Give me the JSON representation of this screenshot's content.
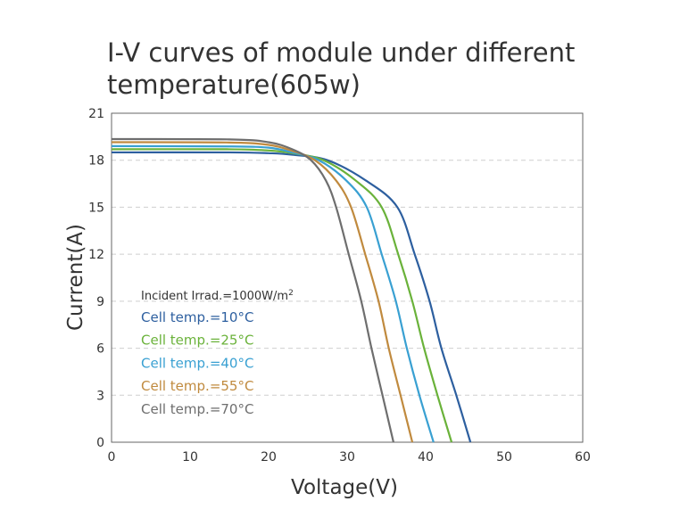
{
  "chart_data": {
    "type": "line",
    "title_lines": [
      "I-V curves of module under different",
      "temperature(605w)"
    ],
    "xlabel": "Voltage(V)",
    "ylabel": "Current(A)",
    "xlim": [
      0,
      60
    ],
    "ylim": [
      0,
      21
    ],
    "xticks": [
      "0",
      "10",
      "20",
      "30",
      "40",
      "50",
      "60"
    ],
    "yticks": [
      "0",
      "3",
      "6",
      "9",
      "12",
      "15",
      "18",
      "21"
    ],
    "grid": "horizontal dashed",
    "annotation": "Incident Irrad.=1000W/m",
    "annotation_sup": "2",
    "legend_placement": "lower-left",
    "series": [
      {
        "name": "Cell temp.=10°C",
        "color": "#2d5f9f",
        "points": [
          [
            0,
            18.5
          ],
          [
            15,
            18.5
          ],
          [
            20,
            18.45
          ],
          [
            23,
            18.35
          ],
          [
            27.5,
            18
          ],
          [
            32.4,
            16.7
          ],
          [
            36.4,
            15
          ],
          [
            38.6,
            12
          ],
          [
            40.5,
            9
          ],
          [
            42.0,
            6
          ],
          [
            43.9,
            3
          ],
          [
            45.7,
            0
          ]
        ]
      },
      {
        "name": "Cell temp.=25°C",
        "color": "#6ab23a",
        "points": [
          [
            0,
            18.7
          ],
          [
            15,
            18.7
          ],
          [
            20,
            18.62
          ],
          [
            23,
            18.45
          ],
          [
            27.0,
            18
          ],
          [
            31.1,
            16.7
          ],
          [
            34.4,
            15
          ],
          [
            36.5,
            12
          ],
          [
            38.3,
            9
          ],
          [
            39.8,
            6
          ],
          [
            41.5,
            3
          ],
          [
            43.3,
            0
          ]
        ]
      },
      {
        "name": "Cell temp.=40°C",
        "color": "#39a0d2",
        "points": [
          [
            0,
            18.9
          ],
          [
            15,
            18.88
          ],
          [
            20,
            18.8
          ],
          [
            23,
            18.5
          ],
          [
            26.4,
            18
          ],
          [
            29.9,
            16.7
          ],
          [
            32.5,
            15
          ],
          [
            34.4,
            12
          ],
          [
            36.2,
            9
          ],
          [
            37.6,
            6
          ],
          [
            39.2,
            3
          ],
          [
            41.0,
            0
          ]
        ]
      },
      {
        "name": "Cell temp.=55°C",
        "color": "#c08a3e",
        "points": [
          [
            0,
            19.15
          ],
          [
            15,
            19.13
          ],
          [
            20,
            18.98
          ],
          [
            23,
            18.6
          ],
          [
            25.9,
            18
          ],
          [
            28.6,
            16.7
          ],
          [
            30.5,
            15
          ],
          [
            32.3,
            12
          ],
          [
            34.0,
            9
          ],
          [
            35.3,
            6
          ],
          [
            36.8,
            3
          ],
          [
            38.3,
            0
          ]
        ]
      },
      {
        "name": "Cell temp.=70°C",
        "color": "#6e6e6e",
        "points": [
          [
            0,
            19.35
          ],
          [
            15,
            19.33
          ],
          [
            20,
            19.15
          ],
          [
            23,
            18.7
          ],
          [
            25.4,
            18
          ],
          [
            27.3,
            16.7
          ],
          [
            28.6,
            15
          ],
          [
            30.2,
            12
          ],
          [
            31.8,
            9
          ],
          [
            33.1,
            6
          ],
          [
            34.5,
            3
          ],
          [
            35.9,
            0
          ]
        ]
      }
    ]
  }
}
